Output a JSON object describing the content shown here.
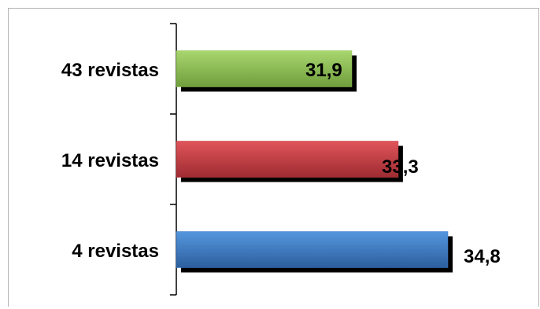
{
  "chart_data": {
    "type": "bar",
    "orientation": "horizontal",
    "categories": [
      "43 revistas",
      "14 revistas",
      "4 revistas"
    ],
    "values": [
      31.9,
      33.3,
      34.8
    ],
    "value_labels": [
      "31,9",
      "33,3",
      "34,8"
    ],
    "colors": [
      "#8cc152",
      "#c0393f",
      "#3a78c4"
    ],
    "xlim": [
      26.6,
      34.8
    ],
    "title": "",
    "xlabel": "",
    "ylabel": "",
    "grid": false,
    "legend": "none"
  }
}
